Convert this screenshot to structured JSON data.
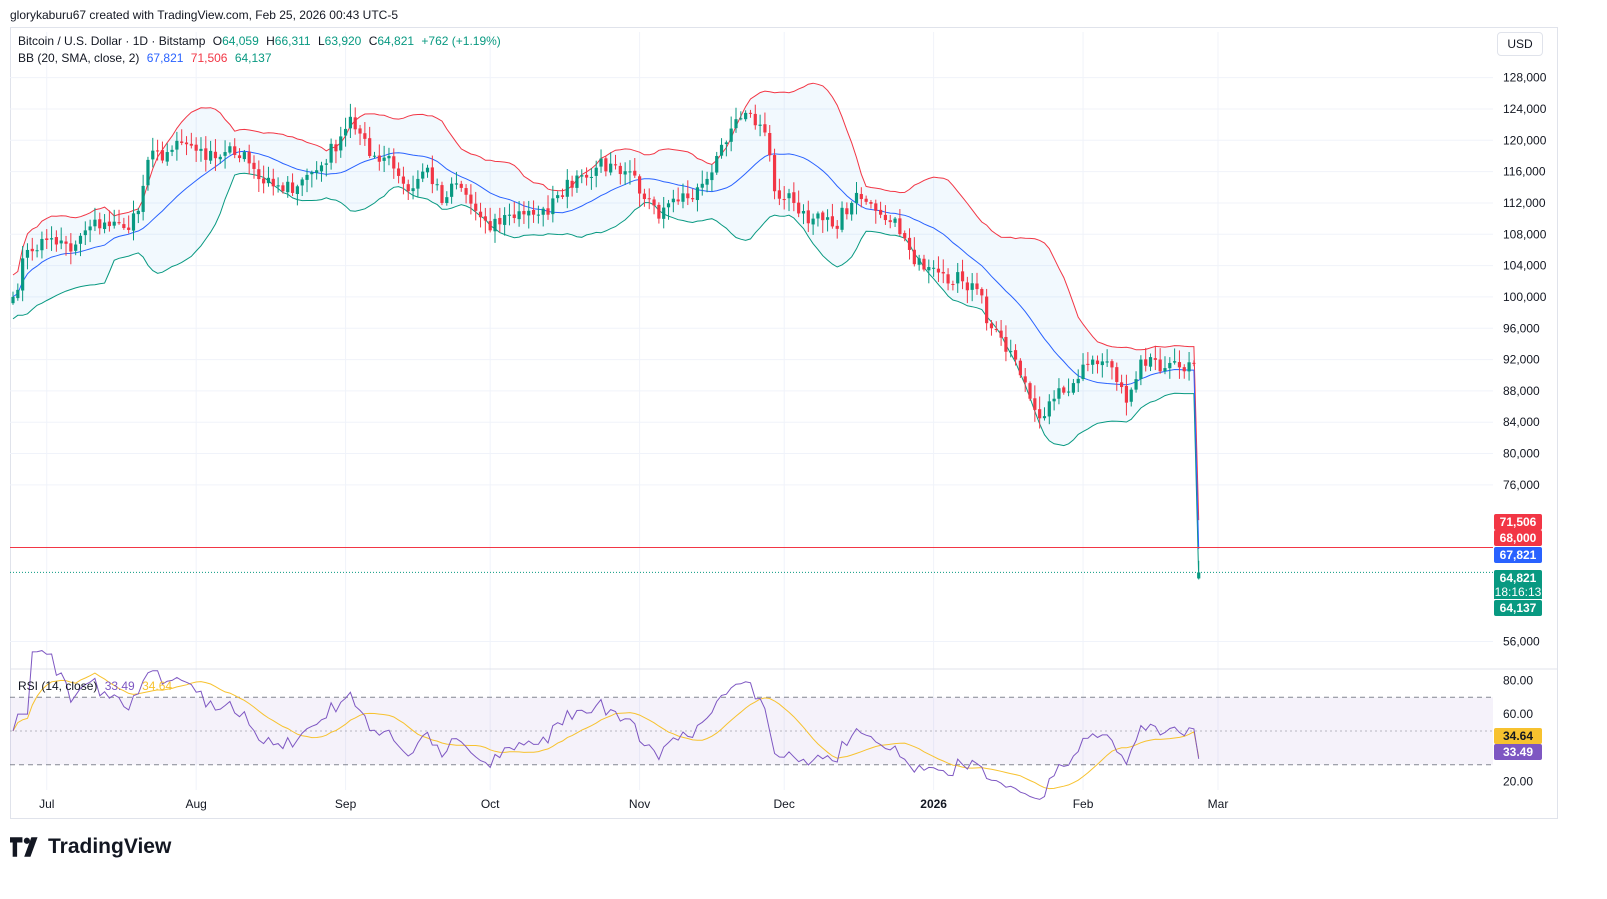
{
  "header": {
    "attribution": "glorykaburu67 created with TradingView.com, Feb 25, 2026 00:43 UTC-5"
  },
  "legend": {
    "title": "Bitcoin / U.S. Dollar · 1D · Bitstamp",
    "open_label": "O",
    "open": "64,059",
    "high_label": "H",
    "high": "66,311",
    "low_label": "L",
    "low": "63,920",
    "close_label": "C",
    "close": "64,821",
    "change": "+762 (+1.19%)",
    "bb_label": "BB (20, SMA, close, 2)",
    "bb_mid": "67,821",
    "bb_upper": "71,506",
    "bb_lower": "64,137",
    "rsi_label": "RSI (14, close)",
    "rsi_value": "33.49",
    "rsi_ma": "34.64"
  },
  "currency_button": "USD",
  "price_labels": {
    "bb_upper": "71,506",
    "line_68000": "68,000",
    "bb_mid": "67,821",
    "last_price": "64,821",
    "countdown": "18:16:13",
    "bb_lower": "64,137",
    "rsi_ma": "34.64",
    "rsi": "33.49"
  },
  "colors": {
    "up": "#089981",
    "down": "#f23645",
    "bb_mid": "#2962ff",
    "bb_upper": "#f23645",
    "bb_lower": "#089981",
    "bb_fill": "#2196f3",
    "rsi": "#7e57c2",
    "rsi_ma": "#f7c22f",
    "hline": "#f23645"
  },
  "chart_data": {
    "type": "candlestick",
    "title": "Bitcoin / U.S. Dollar · 1D · Bitstamp",
    "x_start_date": "2025-06-24",
    "x_end_date": "2026-02-25",
    "x_ticks": [
      {
        "label": "Jul",
        "date": "2025-07-01"
      },
      {
        "label": "Aug",
        "date": "2025-08-01"
      },
      {
        "label": "Sep",
        "date": "2025-09-01"
      },
      {
        "label": "Oct",
        "date": "2025-10-01"
      },
      {
        "label": "Nov",
        "date": "2025-11-01"
      },
      {
        "label": "Dec",
        "date": "2025-12-01"
      },
      {
        "label": "2026",
        "date": "2026-01-01"
      },
      {
        "label": "Feb",
        "date": "2026-02-01"
      },
      {
        "label": "Mar",
        "date": "2026-03-01"
      }
    ],
    "y_range": [
      53000,
      130000
    ],
    "y_ticks": [
      "128,000",
      "124,000",
      "120,000",
      "116,000",
      "112,000",
      "108,000",
      "104,000",
      "100,000",
      "96,000",
      "92,000",
      "88,000",
      "84,000",
      "80,000",
      "76,000",
      "56,000"
    ],
    "y_tick_values": [
      128000,
      124000,
      120000,
      116000,
      112000,
      108000,
      104000,
      100000,
      96000,
      92000,
      88000,
      84000,
      80000,
      76000,
      56000
    ],
    "horizontal_line": 68000,
    "last_close": 64821,
    "close_anchors": [
      [
        0,
        100000
      ],
      [
        3,
        106000
      ],
      [
        8,
        107500
      ],
      [
        12,
        105800
      ],
      [
        16,
        109000
      ],
      [
        19,
        109500
      ],
      [
        23,
        108800
      ],
      [
        26,
        111000
      ],
      [
        28,
        117500
      ],
      [
        32,
        118500
      ],
      [
        36,
        119500
      ],
      [
        40,
        117500
      ],
      [
        44,
        118500
      ],
      [
        48,
        118500
      ],
      [
        52,
        114500
      ],
      [
        56,
        113500
      ],
      [
        60,
        115000
      ],
      [
        64,
        116800
      ],
      [
        68,
        120500
      ],
      [
        70,
        123000
      ],
      [
        74,
        118000
      ],
      [
        78,
        118000
      ],
      [
        82,
        113500
      ],
      [
        86,
        116500
      ],
      [
        89,
        112000
      ],
      [
        92,
        114500
      ],
      [
        96,
        111000
      ],
      [
        99,
        108500
      ],
      [
        103,
        110500
      ],
      [
        107,
        111000
      ],
      [
        111,
        110500
      ],
      [
        113,
        113000
      ],
      [
        117,
        115500
      ],
      [
        121,
        116500
      ],
      [
        125,
        116800
      ],
      [
        129,
        115500
      ],
      [
        131,
        112500
      ],
      [
        134,
        110000
      ],
      [
        138,
        112200
      ],
      [
        142,
        114000
      ],
      [
        146,
        118000
      ],
      [
        149,
        121500
      ],
      [
        152,
        123500
      ],
      [
        155,
        122000
      ],
      [
        156,
        121000
      ],
      [
        158,
        113500
      ],
      [
        162,
        112000
      ],
      [
        166,
        110000
      ],
      [
        170,
        109000
      ],
      [
        174,
        112000
      ],
      [
        176,
        112500
      ],
      [
        179,
        111000
      ],
      [
        180,
        110500
      ],
      [
        183,
        110000
      ],
      [
        186,
        106000
      ],
      [
        189,
        103500
      ],
      [
        193,
        103000
      ],
      [
        197,
        102000
      ],
      [
        200,
        101000
      ],
      [
        203,
        96000
      ],
      [
        206,
        93000
      ],
      [
        209,
        90000
      ],
      [
        211,
        87000
      ],
      [
        213,
        84500
      ],
      [
        216,
        87000
      ],
      [
        220,
        89000
      ],
      [
        224,
        92000
      ],
      [
        228,
        91000
      ],
      [
        231,
        86500
      ],
      [
        234,
        92000
      ],
      [
        238,
        90500
      ],
      [
        242,
        91000
      ],
      [
        245,
        91500
      ],
      [
        249,
        88800
      ],
      [
        252,
        86500
      ],
      [
        256,
        87500
      ],
      [
        259,
        88000
      ],
      [
        263,
        87700
      ],
      [
        266,
        87500
      ],
      [
        270,
        88000
      ],
      [
        273,
        87500
      ],
      [
        276,
        89000
      ],
      [
        280,
        92000
      ],
      [
        284,
        90000
      ],
      [
        288,
        91000
      ],
      [
        291,
        93000
      ],
      [
        293,
        95500
      ],
      [
        296,
        95000
      ],
      [
        299,
        94500
      ],
      [
        302,
        91000
      ],
      [
        305,
        89500
      ],
      [
        309,
        88500
      ],
      [
        312,
        89000
      ],
      [
        314,
        87800
      ],
      [
        316,
        86500
      ],
      [
        319,
        84000
      ],
      [
        322,
        79000
      ],
      [
        325,
        77500
      ],
      [
        327,
        74000
      ],
      [
        329,
        70000
      ],
      [
        331,
        63500
      ],
      [
        333,
        67500
      ],
      [
        336,
        69000
      ],
      [
        339,
        68000
      ],
      [
        342,
        69500
      ],
      [
        345,
        67500
      ],
      [
        348,
        68000
      ],
      [
        351,
        68000
      ],
      [
        354,
        68800
      ],
      [
        356,
        67500
      ],
      [
        358,
        64100
      ],
      [
        360,
        64821
      ]
    ],
    "rsi": {
      "label": "RSI (14, close)",
      "value": 33.49,
      "ma": 34.64,
      "range": [
        15,
        85
      ],
      "bands": [
        30,
        70
      ],
      "mid": 50,
      "y_ticks": [
        "80.00",
        "60.00",
        "40.00",
        "20.00"
      ],
      "y_tick_values": [
        80,
        60,
        40,
        20
      ]
    },
    "bollinger": {
      "label": "BB (20, SMA, close, 2)",
      "mid": 67821,
      "upper": 71506,
      "lower": 64137
    }
  }
}
